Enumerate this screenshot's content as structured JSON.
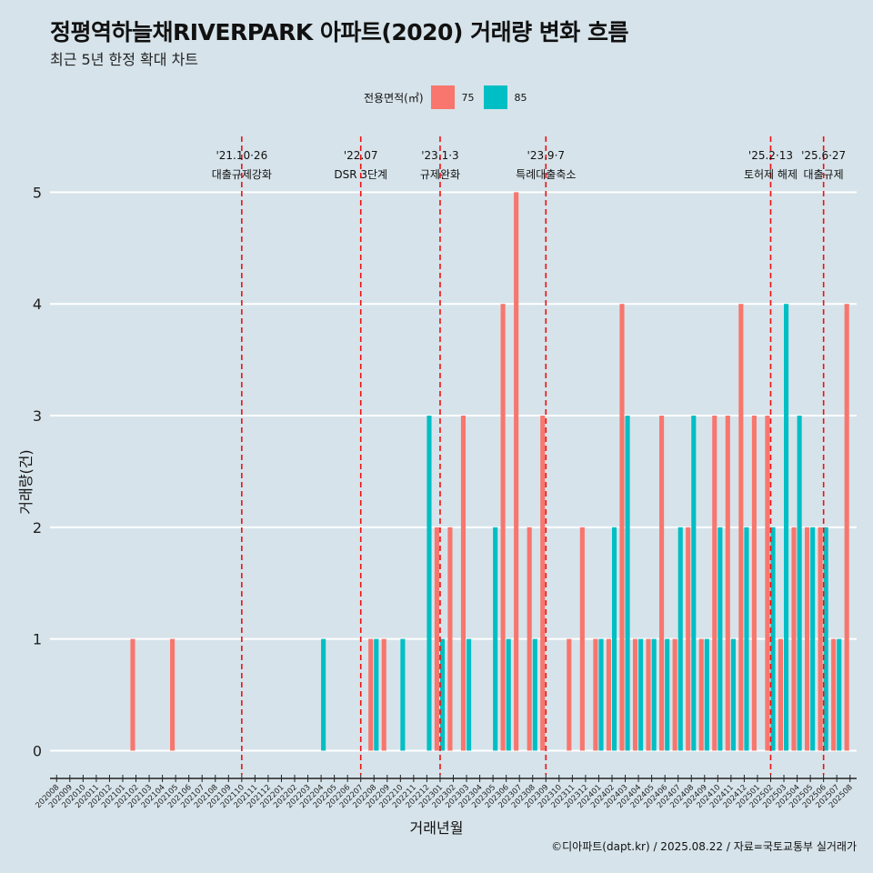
{
  "title": "정평역하늘채RIVERPARK 아파트(2020) 거래량 변화 흐름",
  "subtitle": "최근 5년 한정 확대 차트",
  "legend": {
    "title": "전용면적(㎡)",
    "items": [
      {
        "label": "75",
        "color": "#f8766d"
      },
      {
        "label": "85",
        "color": "#00bfc4"
      }
    ]
  },
  "caption": "©디아파트(dapt.kr) / 2025.08.22 / 자료=국토교통부 실거래가",
  "chart_data": {
    "type": "bar",
    "title": "정평역하늘채RIVERPARK 아파트(2020) 거래량 변화 흐름",
    "xlabel": "거래년월",
    "ylabel": "거래량(건)",
    "ylim": [
      -0.2,
      5.5
    ],
    "yticks": [
      0,
      1,
      2,
      3,
      4,
      5
    ],
    "grid": true,
    "legend_position": "top",
    "categories": [
      "202008",
      "202009",
      "202010",
      "202011",
      "202012",
      "202101",
      "202102",
      "202103",
      "202104",
      "202105",
      "202106",
      "202107",
      "202108",
      "202109",
      "202110",
      "202111",
      "202112",
      "202201",
      "202202",
      "202203",
      "202204",
      "202205",
      "202206",
      "202207",
      "202208",
      "202209",
      "202210",
      "202211",
      "202212",
      "202301",
      "202302",
      "202303",
      "202304",
      "202305",
      "202306",
      "202307",
      "202308",
      "202309",
      "202310",
      "202311",
      "202312",
      "202401",
      "202402",
      "202403",
      "202404",
      "202405",
      "202406",
      "202407",
      "202408",
      "202409",
      "202410",
      "202411",
      "202412",
      "202501",
      "202502",
      "202503",
      "202504",
      "202505",
      "202506",
      "202507",
      "202508"
    ],
    "series": [
      {
        "name": "75",
        "color": "#f8766d",
        "values": [
          0,
          0,
          0,
          0,
          0,
          0,
          1,
          0,
          0,
          1,
          0,
          0,
          0,
          0,
          0,
          0,
          0,
          0,
          0,
          0,
          0,
          0,
          0,
          0,
          1,
          1,
          0,
          0,
          0,
          2,
          2,
          3,
          0,
          0,
          4,
          5,
          2,
          3,
          0,
          1,
          2,
          1,
          1,
          4,
          1,
          1,
          3,
          1,
          2,
          1,
          3,
          3,
          4,
          3,
          3,
          1,
          2,
          2,
          2,
          1,
          4
        ]
      },
      {
        "name": "85",
        "color": "#00bfc4",
        "values": [
          0,
          0,
          0,
          0,
          0,
          0,
          0,
          0,
          0,
          0,
          0,
          0,
          0,
          0,
          0,
          0,
          0,
          0,
          0,
          0,
          1,
          0,
          0,
          0,
          1,
          0,
          1,
          0,
          3,
          1,
          0,
          1,
          0,
          2,
          1,
          0,
          1,
          0,
          0,
          0,
          0,
          1,
          2,
          3,
          1,
          1,
          1,
          2,
          3,
          1,
          2,
          1,
          2,
          0,
          2,
          4,
          3,
          2,
          2,
          1,
          0
        ]
      }
    ],
    "annotations": [
      {
        "at": "202110",
        "date": "'21.10·26",
        "label": "대출규제강화"
      },
      {
        "at": "202207",
        "date": "'22.07",
        "label": "DSR 3단계"
      },
      {
        "at": "202301",
        "date": "'23.1·3",
        "label": "규제완화"
      },
      {
        "at": "202309",
        "date": "'23.9·7",
        "label": "특례대출축소"
      },
      {
        "at": "202502",
        "date": "'25.2·13",
        "label": "토허제 해제"
      },
      {
        "at": "202506",
        "date": "'25.6·27",
        "label": "대출규제"
      }
    ]
  }
}
